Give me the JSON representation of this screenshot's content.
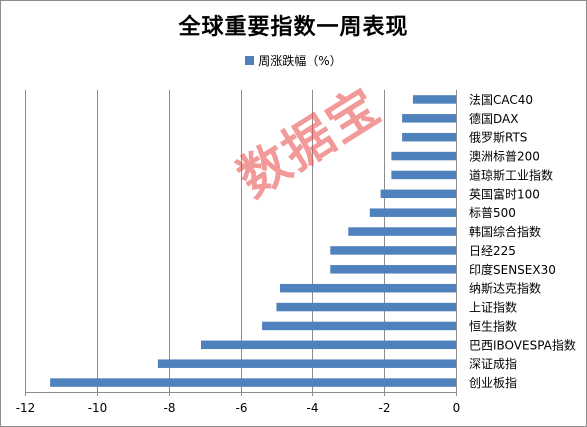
{
  "chart_data": {
    "type": "bar",
    "orientation": "horizontal",
    "title": "全球重要指数一周表现",
    "categories": [
      "法国CAC40",
      "德国DAX",
      "俄罗斯RTS",
      "澳洲标普200",
      "道琼斯工业指数",
      "英国富时100",
      "标普500",
      "韩国综合指数",
      "日经225",
      "印度SENSEX30",
      "纳斯达克指数",
      "上证指数",
      "恒生指数",
      "巴西IBOVESPA指数",
      "深证成指",
      "创业板指"
    ],
    "series": [
      {
        "name": "周涨跌幅（%）",
        "values": [
          -1.2,
          -1.5,
          -1.5,
          -1.8,
          -1.8,
          -2.1,
          -2.4,
          -3.0,
          -3.5,
          -3.5,
          -4.9,
          -5.0,
          -5.4,
          -7.1,
          -8.3,
          -11.3
        ]
      }
    ],
    "xlim": [
      -12,
      0
    ],
    "xticks": [
      -12,
      -10,
      -8,
      -6,
      -4,
      -2,
      0
    ],
    "grid": true,
    "legend_position": "top",
    "bar_color": "#4f81bd"
  },
  "watermark": "数据宝"
}
